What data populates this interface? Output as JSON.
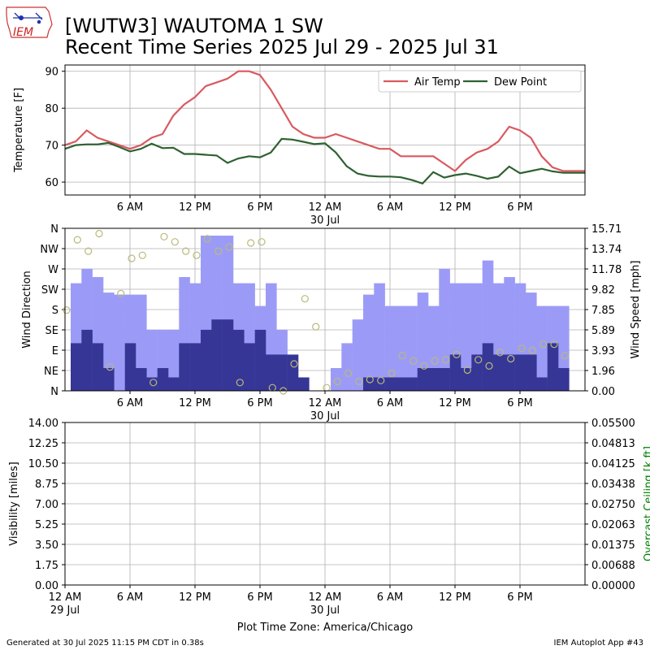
{
  "header": {
    "logo_text": "IEM",
    "title_line1": "[WUTW3] WAUTOMA 1 SW",
    "title_line2": "Recent Time Series 2025 Jul 29 - 2025 Jul 31"
  },
  "footer": {
    "generated": "Generated at 30 Jul 2025 11:15 PM CDT in 0.38s",
    "app": "IEM Autoplot App #43",
    "time_zone": "Plot Time Zone: America/Chicago"
  },
  "colors": {
    "air_temp": "#d9595f",
    "dew_point": "#2e6131",
    "gust_bar": "#9b9bf7",
    "wind_bar": "#363696",
    "direction_marker": "#b9b97a",
    "ceiling_axis": "#008000",
    "grid": "#b0b0b0"
  },
  "chart_data": [
    {
      "type": "line",
      "ylabel": "Temperature [F]",
      "ylim": [
        56.5,
        91.7
      ],
      "yticks": [
        60,
        70,
        80,
        90
      ],
      "x_unit": "hours since 12 AM 29 Jul",
      "xlim": [
        0,
        48
      ],
      "xticks": [
        {
          "x": 6,
          "label": "6 AM",
          "sub": ""
        },
        {
          "x": 12,
          "label": "12 PM",
          "sub": ""
        },
        {
          "x": 18,
          "label": "6 PM",
          "sub": ""
        },
        {
          "x": 24,
          "label": "12 AM",
          "sub": "30 Jul"
        },
        {
          "x": 30,
          "label": "6 AM",
          "sub": ""
        },
        {
          "x": 36,
          "label": "12 PM",
          "sub": ""
        },
        {
          "x": 42,
          "label": "6 PM",
          "sub": ""
        }
      ],
      "grid": true,
      "legend_position": "top-right",
      "x": [
        0,
        1,
        2,
        3,
        4,
        5,
        6,
        7,
        8,
        9,
        10,
        11,
        12,
        13,
        14,
        15,
        16,
        17,
        18,
        19,
        20,
        21,
        22,
        23,
        24,
        25,
        26,
        27,
        28,
        29,
        30,
        31,
        32,
        33,
        34,
        35,
        36,
        37,
        38,
        39,
        40,
        41,
        42,
        43,
        44,
        45,
        46,
        47,
        48
      ],
      "series": [
        {
          "name": "Air Temp",
          "values": [
            70,
            71,
            74,
            72,
            71,
            70,
            69,
            70,
            72,
            73,
            78,
            81,
            83,
            86,
            87,
            88,
            90,
            90,
            89,
            85,
            80,
            75,
            73,
            72,
            72,
            73,
            72,
            71,
            70,
            69,
            69,
            67,
            67,
            67,
            67,
            65,
            63,
            66,
            68,
            69,
            71,
            75,
            74,
            72,
            67,
            64,
            63,
            63,
            63
          ]
        },
        {
          "name": "Dew Point",
          "values": [
            69,
            70,
            70.2,
            70.2,
            70.6,
            69.5,
            68.3,
            69,
            70.4,
            69.2,
            69.3,
            67.6,
            67.6,
            67.4,
            67.2,
            65.2,
            66.4,
            67,
            66.7,
            68,
            71.7,
            71.5,
            70.9,
            70.3,
            70.5,
            68,
            64.3,
            62.3,
            61.7,
            61.5,
            61.5,
            61.3,
            60.6,
            59.6,
            62.7,
            61.2,
            61.9,
            62.3,
            61.7,
            60.9,
            61.5,
            64.2,
            62.4,
            63,
            63.6,
            62.9,
            62.5,
            62.5,
            62.5
          ]
        }
      ]
    },
    {
      "type": "bar",
      "ylabel": "Wind Direction",
      "y2label": "Wind Speed [mph]",
      "dir_ticks": [
        "N",
        "NE",
        "E",
        "SE",
        "S",
        "SW",
        "W",
        "NW",
        "N"
      ],
      "ylim": [
        0,
        15.71
      ],
      "y2_ticks": [
        "0.00",
        "1.96",
        "3.93",
        "5.89",
        "7.85",
        "9.82",
        "11.78",
        "13.74",
        "15.71"
      ],
      "xlim": [
        0,
        48
      ],
      "xticks": [
        {
          "x": 6,
          "label": "6 AM",
          "sub": ""
        },
        {
          "x": 12,
          "label": "12 PM",
          "sub": ""
        },
        {
          "x": 18,
          "label": "6 PM",
          "sub": ""
        },
        {
          "x": 24,
          "label": "12 AM",
          "sub": "30 Jul"
        },
        {
          "x": 30,
          "label": "6 AM",
          "sub": ""
        },
        {
          "x": 36,
          "label": "12 PM",
          "sub": ""
        },
        {
          "x": 42,
          "label": "6 PM",
          "sub": ""
        }
      ],
      "grid": true,
      "bar_width_hours": 1,
      "x": [
        0,
        1,
        2,
        3,
        4,
        5,
        6,
        7,
        8,
        9,
        10,
        11,
        12,
        13,
        14,
        15,
        16,
        17,
        18,
        19,
        20,
        21,
        22,
        23,
        24,
        25,
        26,
        27,
        28,
        29,
        30,
        31,
        32,
        33,
        34,
        35,
        36,
        37,
        38,
        39,
        40,
        41,
        42,
        43,
        44,
        45,
        46
      ],
      "series": [
        {
          "name": "gust",
          "values": [
            10.4,
            11.8,
            11.0,
            9.5,
            9.3,
            9.3,
            9.3,
            5.9,
            5.9,
            5.9,
            11.0,
            10.4,
            15.0,
            15.0,
            15.0,
            10.4,
            10.4,
            8.2,
            10.4,
            5.9,
            1.3,
            1.3,
            0,
            0,
            2.2,
            4.6,
            6.9,
            9.3,
            10.4,
            8.2,
            8.2,
            8.2,
            9.5,
            8.2,
            11.8,
            10.4,
            10.4,
            10.4,
            12.6,
            10.4,
            11.0,
            10.4,
            9.5,
            8.2,
            8.2,
            8.2,
            0
          ]
        },
        {
          "name": "speed",
          "values": [
            4.6,
            5.9,
            4.6,
            2.2,
            0,
            4.6,
            2.2,
            1.3,
            2.2,
            1.3,
            4.6,
            4.6,
            5.9,
            6.9,
            6.9,
            5.9,
            4.6,
            5.9,
            3.5,
            3.5,
            3.5,
            1.3,
            0,
            0,
            0,
            0,
            0,
            1.3,
            1.3,
            1.3,
            1.3,
            1.3,
            2.2,
            2.2,
            2.2,
            3.5,
            2.2,
            3.5,
            4.6,
            3.5,
            3.5,
            3.5,
            3.5,
            1.3,
            4.6,
            2.2,
            0
          ]
        }
      ],
      "direction_points": [
        [
          0,
          7.8
        ],
        [
          1,
          14.6
        ],
        [
          2,
          13.5
        ],
        [
          3,
          15.2
        ],
        [
          4,
          2.3
        ],
        [
          5,
          9.4
        ],
        [
          6,
          12.8
        ],
        [
          7,
          13.1
        ],
        [
          8,
          0.8
        ],
        [
          9,
          14.9
        ],
        [
          10,
          14.4
        ],
        [
          11,
          13.5
        ],
        [
          12,
          13.1
        ],
        [
          13,
          14.7
        ],
        [
          14,
          13.5
        ],
        [
          15,
          13.9
        ],
        [
          16,
          0.8
        ],
        [
          17,
          14.3
        ],
        [
          18,
          14.4
        ],
        [
          19,
          0.3
        ],
        [
          20,
          0
        ],
        [
          21,
          2.6
        ],
        [
          22,
          8.9
        ],
        [
          23,
          6.2
        ],
        [
          24,
          0.3
        ],
        [
          25,
          0.9
        ],
        [
          26,
          1.7
        ],
        [
          27,
          0.9
        ],
        [
          28,
          1.1
        ],
        [
          29,
          1.0
        ],
        [
          30,
          1.7
        ],
        [
          31,
          3.4
        ],
        [
          32,
          2.9
        ],
        [
          33,
          2.4
        ],
        [
          34,
          2.9
        ],
        [
          35,
          3.0
        ],
        [
          36,
          3.5
        ],
        [
          37,
          2.0
        ],
        [
          38,
          3.0
        ],
        [
          39,
          2.4
        ],
        [
          40,
          3.7
        ],
        [
          41,
          3.1
        ],
        [
          42,
          4.1
        ],
        [
          43,
          3.9
        ],
        [
          44,
          4.5
        ],
        [
          45,
          4.5
        ],
        [
          46,
          3.4
        ]
      ]
    },
    {
      "type": "line",
      "ylabel": "Visibility [miles]",
      "y2label": "Overcast Ceiling [k ft]",
      "ylim": [
        0,
        14
      ],
      "yticks": [
        "0.00",
        "1.75",
        "3.50",
        "5.25",
        "7.00",
        "8.75",
        "10.50",
        "12.25",
        "14.00"
      ],
      "y2_ticks": [
        "0.00000",
        "0.00688",
        "0.01375",
        "0.02063",
        "0.02750",
        "0.03438",
        "0.04125",
        "0.04813",
        "0.05500"
      ],
      "xlim": [
        0,
        48
      ],
      "xticks": [
        {
          "x": 0,
          "label": "12 AM",
          "sub": "29 Jul"
        },
        {
          "x": 6,
          "label": "6 AM",
          "sub": ""
        },
        {
          "x": 12,
          "label": "12 PM",
          "sub": ""
        },
        {
          "x": 18,
          "label": "6 PM",
          "sub": ""
        },
        {
          "x": 24,
          "label": "12 AM",
          "sub": "30 Jul"
        },
        {
          "x": 30,
          "label": "6 AM",
          "sub": ""
        },
        {
          "x": 36,
          "label": "12 PM",
          "sub": ""
        },
        {
          "x": 42,
          "label": "6 PM",
          "sub": ""
        }
      ],
      "grid": true,
      "series": []
    }
  ]
}
